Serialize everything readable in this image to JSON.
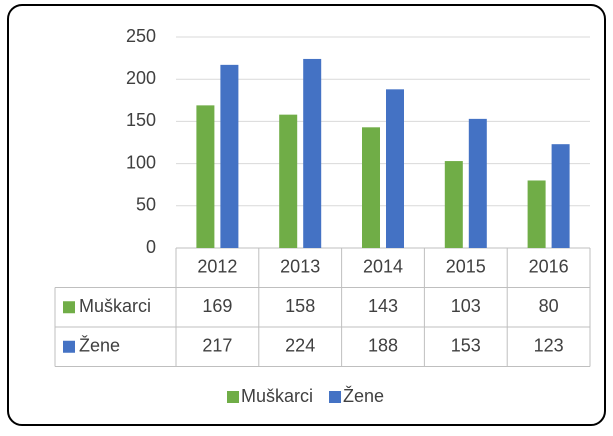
{
  "chart_data": {
    "type": "bar",
    "categories": [
      "2012",
      "2013",
      "2014",
      "2015",
      "2016"
    ],
    "series": [
      {
        "name": "Muškarci",
        "color": "#70ad47",
        "values": [
          169,
          158,
          143,
          103,
          80
        ]
      },
      {
        "name": "Žene",
        "color": "#4472c4",
        "values": [
          217,
          224,
          188,
          153,
          123
        ]
      }
    ],
    "ylim": [
      0,
      250
    ],
    "yticks": [
      0,
      50,
      100,
      150,
      200,
      250
    ],
    "grid": true,
    "legend": "bottom"
  }
}
